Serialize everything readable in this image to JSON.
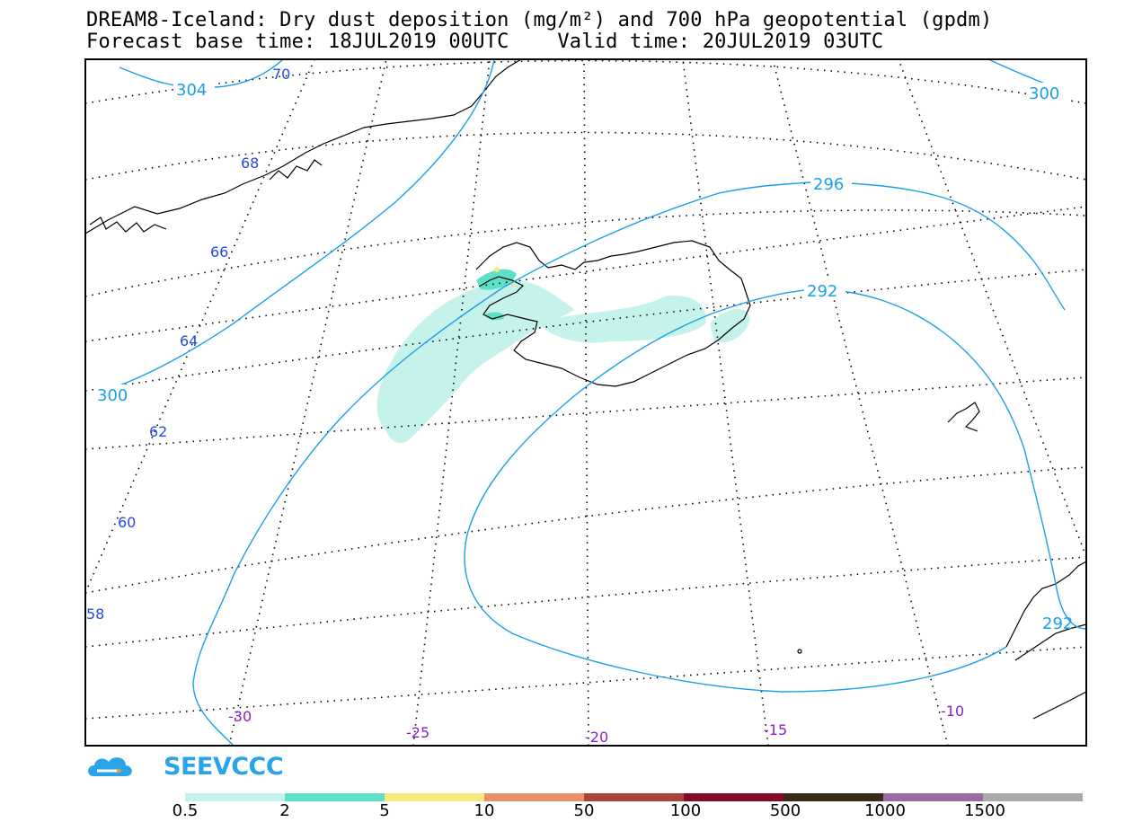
{
  "title": {
    "line1": "DREAM8-Iceland: Dry dust deposition (mg/m²) and 700 hPa geopotential (gpdm)",
    "line2": "Forecast base time: 18JUL2019 00UTC    Valid time: 20JUL2019 03UTC"
  },
  "latitude_labels": [
    "70",
    "68",
    "66",
    "64",
    "62",
    "60",
    "58"
  ],
  "longitude_labels": [
    "-30",
    "-25",
    "-20",
    "-15",
    "-10"
  ],
  "contour_labels": [
    "304",
    "300",
    "300",
    "296",
    "292",
    "292"
  ],
  "logo": {
    "text": "SEEVCCC",
    "icon": "cloud-logo-icon"
  },
  "colorbar": {
    "labels": [
      "0.5",
      "2",
      "5",
      "10",
      "50",
      "100",
      "500",
      "1000",
      "1500"
    ],
    "colors": [
      "#c6f2ec",
      "#5ee0c8",
      "#f8e880",
      "#e8906a",
      "#a84438",
      "#820a2a",
      "#3a2a1a",
      "#9a6aa0",
      "#aaaaaa"
    ]
  },
  "colors": {
    "contour": "#1aa0e8",
    "latitude_label": "#2848e0",
    "longitude_label": "#8a1ec8",
    "coast": "#000000"
  }
}
